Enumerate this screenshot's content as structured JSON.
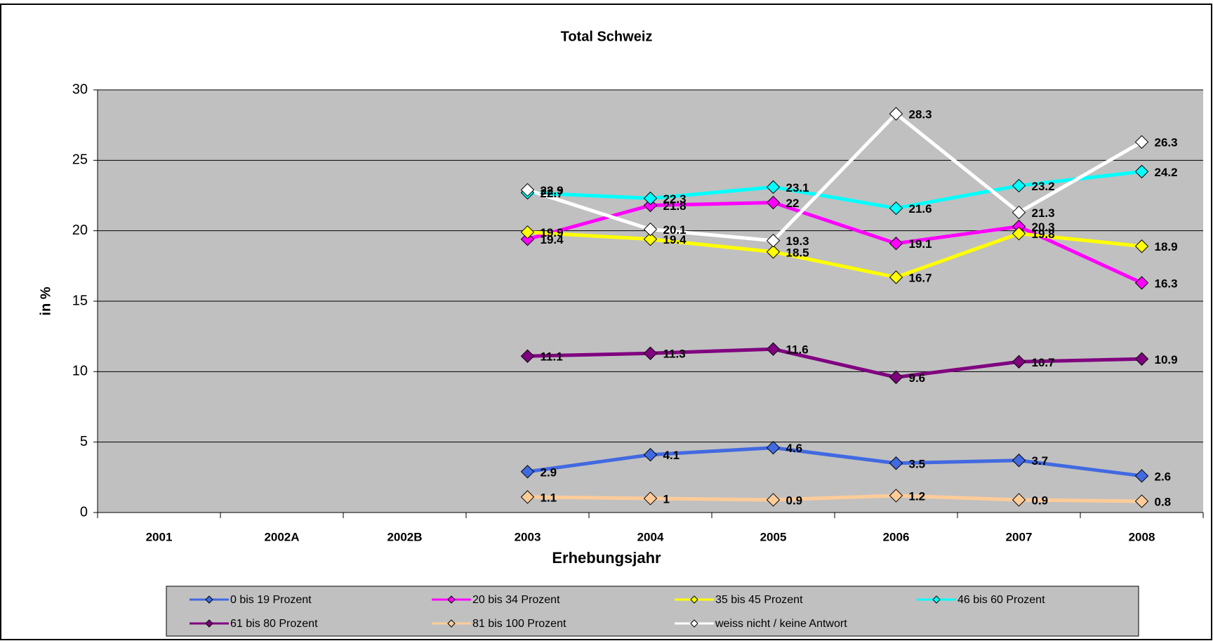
{
  "chart_data": {
    "type": "line",
    "title": "Total Schweiz",
    "x_label": "Erhebungsjahr",
    "y_label": "in %",
    "categories": [
      "2001",
      "2002A",
      "2002B",
      "2003",
      "2004",
      "2005",
      "2006",
      "2007",
      "2008"
    ],
    "ylim": [
      0,
      30
    ],
    "yticks": [
      0,
      5,
      10,
      15,
      20,
      25,
      30
    ],
    "grid": true,
    "series": [
      {
        "name": "0 bis 19 Prozent",
        "color": "#4169e1",
        "values": [
          null,
          null,
          null,
          2.9,
          4.1,
          4.6,
          3.5,
          3.7,
          2.6
        ]
      },
      {
        "name": "20 bis 34 Prozent",
        "color": "#ff00ff",
        "values": [
          null,
          null,
          null,
          19.4,
          21.8,
          22,
          19.1,
          20.3,
          16.3
        ]
      },
      {
        "name": "35 bis 45 Prozent",
        "color": "#ffff00",
        "values": [
          null,
          null,
          null,
          19.9,
          19.4,
          18.5,
          16.7,
          19.8,
          18.9
        ]
      },
      {
        "name": "46 bis 60 Prozent",
        "color": "#00ffff",
        "values": [
          null,
          null,
          null,
          22.7,
          22.3,
          23.1,
          21.6,
          23.2,
          24.2
        ]
      },
      {
        "name": "61 bis 80 Prozent",
        "color": "#800080",
        "values": [
          null,
          null,
          null,
          11.1,
          11.3,
          11.6,
          9.6,
          10.7,
          10.9
        ]
      },
      {
        "name": "81 bis 100 Prozent",
        "color": "#ffcc99",
        "values": [
          null,
          null,
          null,
          1.1,
          1,
          0.9,
          1.2,
          0.9,
          0.8
        ]
      },
      {
        "name": "weiss nicht / keine Antwort",
        "color": "#ffffff",
        "values": [
          null,
          null,
          null,
          22.9,
          20.1,
          19.3,
          28.3,
          21.3,
          26.3
        ]
      }
    ]
  }
}
